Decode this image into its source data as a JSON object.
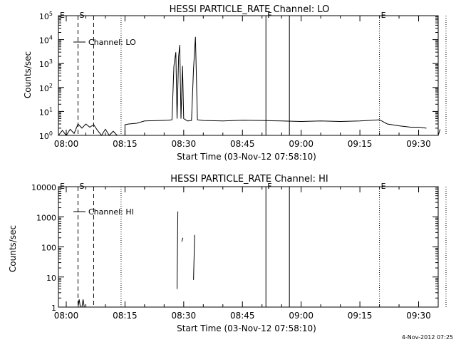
{
  "chart_data": [
    {
      "type": "line",
      "title": "HESSI PARTICLE_RATE Channel: LO",
      "xlabel": "Start Time (03-Nov-12 07:58:10)",
      "ylabel": "Counts/sec",
      "yscale": "log",
      "ylim": [
        1,
        100000
      ],
      "xlim_minutes": [
        0,
        97
      ],
      "x_ticks": [
        "08:00",
        "08:15",
        "08:30",
        "08:45",
        "09:00",
        "09:15",
        "09:30"
      ],
      "y_ticks": [
        {
          "base": "10",
          "exp": "0",
          "value": 1
        },
        {
          "base": "10",
          "exp": "1",
          "value": 10
        },
        {
          "base": "10",
          "exp": "2",
          "value": 100
        },
        {
          "base": "10",
          "exp": "3",
          "value": 1000
        },
        {
          "base": "10",
          "exp": "4",
          "value": 10000
        },
        {
          "base": "10",
          "exp": "5",
          "value": 100000
        }
      ],
      "legend": {
        "label": "Channel: LO",
        "placement": "top-left"
      },
      "markers": [
        {
          "label": "E",
          "time": "07:58",
          "style": "dashed"
        },
        {
          "label": "S",
          "time": "08:03",
          "style": "dashed"
        },
        {
          "label": "",
          "time": "08:07",
          "style": "dashed"
        },
        {
          "label": "",
          "time": "08:14",
          "style": "dotted"
        },
        {
          "label": "F",
          "time": "08:51",
          "style": "solid"
        },
        {
          "label": "",
          "time": "08:57",
          "style": "solid"
        },
        {
          "label": "E",
          "time": "09:20",
          "style": "dotted"
        },
        {
          "label": "",
          "time": "09:37",
          "style": "dotted"
        }
      ],
      "series": [
        {
          "segments": [
            [
              [
                "07:58",
                1
              ],
              [
                "07:59",
                1.6
              ],
              [
                "08:00",
                1
              ],
              [
                "08:01",
                1.8
              ],
              [
                "08:02",
                1.2
              ],
              [
                "08:03",
                3
              ],
              [
                "08:04",
                2
              ],
              [
                "08:05",
                3
              ],
              [
                "08:06",
                2.2
              ],
              [
                "08:07",
                2.8
              ],
              [
                "08:08",
                1.6
              ],
              [
                "08:09",
                1
              ],
              [
                "08:10",
                1.8
              ],
              [
                "08:11",
                1
              ],
              [
                "08:12",
                1.5
              ],
              [
                "08:13",
                1
              ]
            ],
            [
              [
                "08:15",
                1
              ],
              [
                "08:15",
                2.8
              ],
              [
                "08:16",
                3
              ],
              [
                "08:18",
                3.2
              ],
              [
                "08:20",
                4
              ],
              [
                "08:24",
                4.2
              ],
              [
                "08:26",
                4.3
              ],
              [
                "08:27",
                4.5
              ],
              [
                "08:27.5",
                800
              ],
              [
                "08:28",
                3000
              ],
              [
                "08:28.3",
                5
              ],
              [
                "08:28.7",
                2000
              ],
              [
                "08:29",
                6000
              ],
              [
                "08:29.3",
                5
              ],
              [
                "08:29.7",
                800
              ],
              [
                "08:30",
                5
              ],
              [
                "08:31",
                4
              ],
              [
                "08:32",
                4.2
              ],
              [
                "08:32.5",
                600
              ],
              [
                "08:33",
                13000
              ],
              [
                "08:33.5",
                4.5
              ],
              [
                "08:35",
                4.2
              ],
              [
                "08:40",
                4
              ],
              [
                "08:45",
                4.3
              ],
              [
                "08:50",
                4.2
              ],
              [
                "08:55",
                4
              ],
              [
                "09:00",
                3.8
              ],
              [
                "09:05",
                4
              ],
              [
                "09:10",
                3.8
              ],
              [
                "09:15",
                4
              ],
              [
                "09:20",
                4.5
              ],
              [
                "09:22",
                3
              ],
              [
                "09:25",
                2.5
              ],
              [
                "09:28",
                2.2
              ],
              [
                "09:30",
                2.2
              ],
              [
                "09:32",
                2
              ]
            ],
            [
              [
                "09:35",
                1
              ],
              [
                "09:35.5",
                1.8
              ]
            ]
          ]
        }
      ]
    },
    {
      "type": "line",
      "title": "HESSI PARTICLE_RATE Channel: HI",
      "xlabel": "Start Time (03-Nov-12 07:58:10)",
      "ylabel": "Counts/sec",
      "yscale": "log",
      "ylim": [
        1,
        10000
      ],
      "xlim_minutes": [
        0,
        97
      ],
      "x_ticks": [
        "08:00",
        "08:15",
        "08:30",
        "08:45",
        "09:00",
        "09:15",
        "09:30"
      ],
      "y_ticks": [
        {
          "label": "1",
          "value": 1
        },
        {
          "label": "10",
          "value": 10
        },
        {
          "label": "100",
          "value": 100
        },
        {
          "label": "1000",
          "value": 1000
        },
        {
          "label": "10000",
          "value": 10000
        }
      ],
      "legend": {
        "label": "Channel: HI",
        "placement": "top-left"
      },
      "markers": [
        {
          "label": "E",
          "time": "07:58",
          "style": "dashed"
        },
        {
          "label": "S",
          "time": "08:03",
          "style": "dashed"
        },
        {
          "label": "",
          "time": "08:07",
          "style": "dashed"
        },
        {
          "label": "",
          "time": "08:14",
          "style": "dotted"
        },
        {
          "label": "F",
          "time": "08:51",
          "style": "solid"
        },
        {
          "label": "",
          "time": "08:57",
          "style": "solid"
        },
        {
          "label": "E",
          "time": "09:20",
          "style": "dotted"
        },
        {
          "label": "",
          "time": "09:37",
          "style": "dotted"
        }
      ],
      "series": [
        {
          "segments": [
            [
              [
                "08:03",
                1
              ],
              [
                "08:03.3",
                1.8
              ],
              [
                "08:03.6",
                1
              ]
            ],
            [
              [
                "08:04",
                1
              ],
              [
                "08:04.3",
                1.8
              ],
              [
                "08:04.6",
                1
              ]
            ],
            [
              [
                "08:28.3",
                4
              ],
              [
                "08:28.5",
                1500
              ]
            ],
            [
              [
                "08:29.5",
                150
              ],
              [
                "08:29.8",
                200
              ]
            ],
            [
              [
                "08:32.5",
                8
              ],
              [
                "08:32.8",
                250
              ]
            ]
          ]
        }
      ]
    }
  ],
  "footer": {
    "timestamp": "4-Nov-2012 07:25"
  }
}
